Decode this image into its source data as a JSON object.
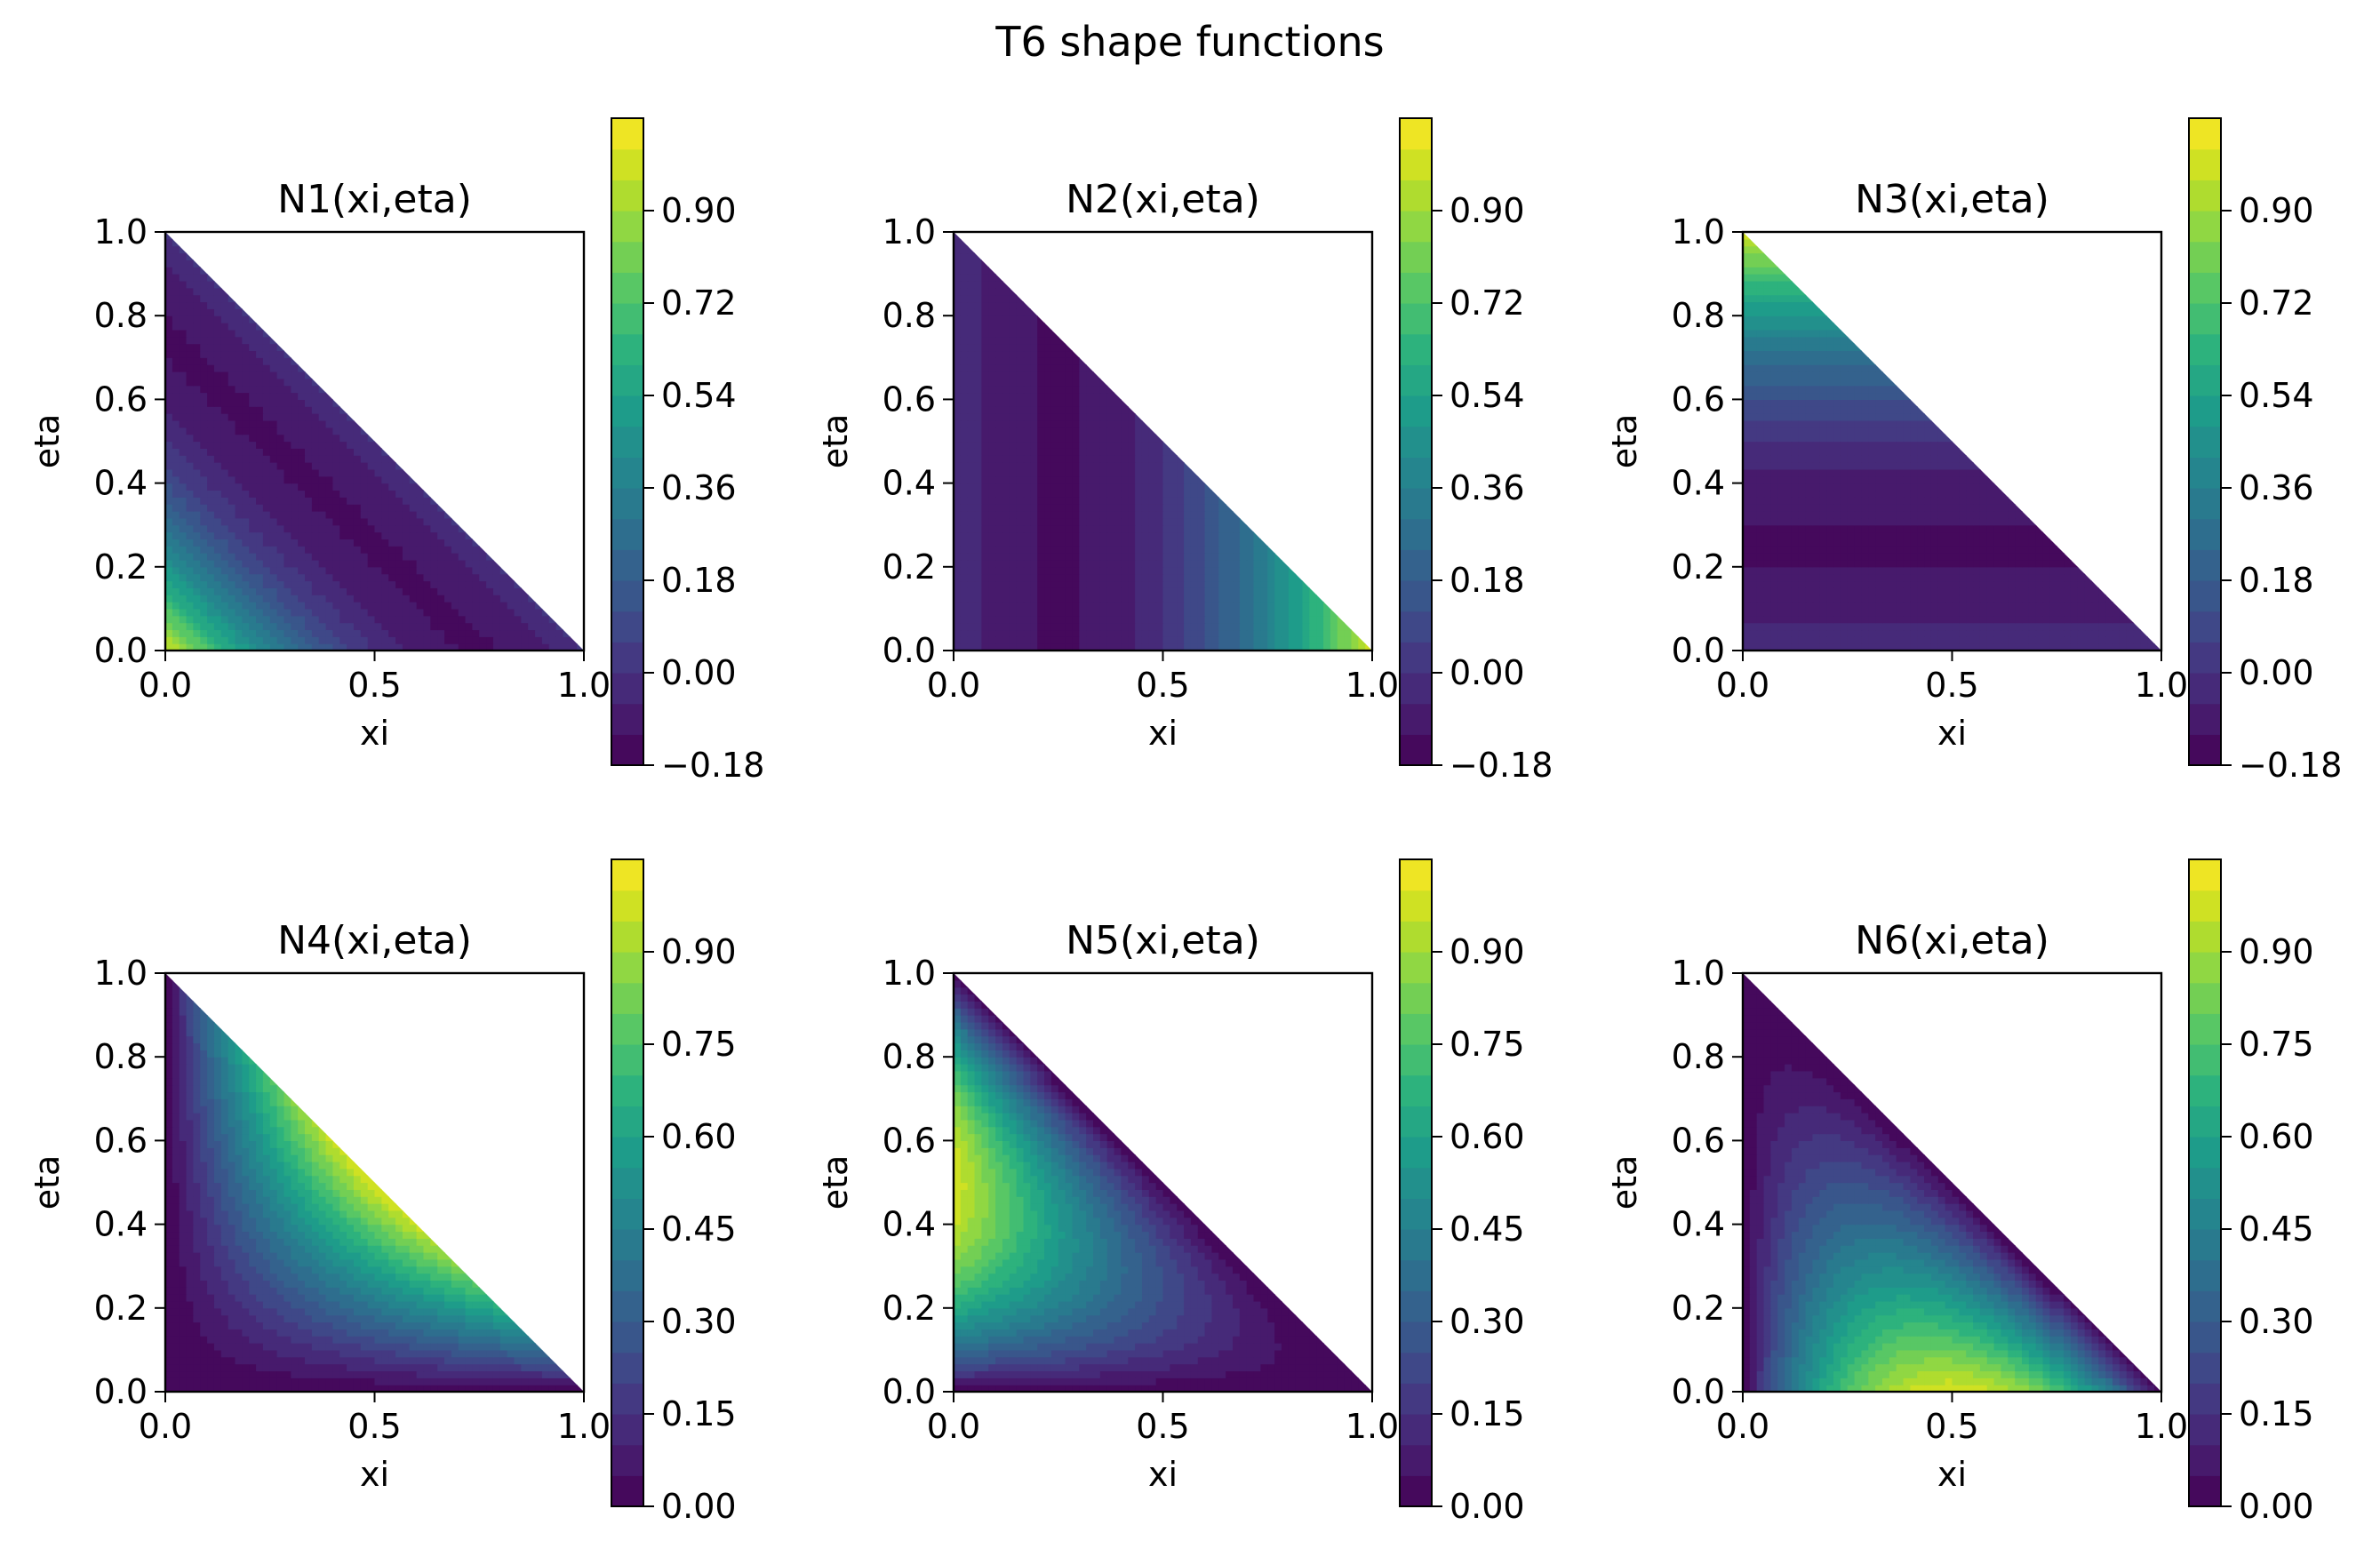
{
  "figure": {
    "title": "T6 shape functions"
  },
  "colors": {
    "viridis": [
      "#440154",
      "#482173",
      "#433e85",
      "#38598c",
      "#2d708e",
      "#25858e",
      "#1e9b8a",
      "#2ab07f",
      "#52c569",
      "#86d549",
      "#c2df23",
      "#fde725"
    ],
    "axes": "#000000",
    "background": "#ffffff"
  },
  "chart_data": [
    {
      "type": "heatmap",
      "title": "N1(xi,eta)",
      "xlabel": "xi",
      "ylabel": "eta",
      "node": 1,
      "xlim": [
        0,
        1
      ],
      "ylim": [
        0,
        1
      ],
      "domain": "triangle",
      "xticks": [
        "0.0",
        "0.5",
        "1.0"
      ],
      "yticks": [
        "0.0",
        "0.2",
        "0.4",
        "0.6",
        "0.8",
        "1.0"
      ],
      "levels": [
        -0.18,
        1.08
      ],
      "level_step": 0.06,
      "colorbar_ticks": [
        "−0.18",
        "0.00",
        "0.18",
        "0.36",
        "0.54",
        "0.72",
        "0.90"
      ],
      "colorbar_tick_values": [
        -0.18,
        0.0,
        0.18,
        0.36,
        0.54,
        0.72,
        0.9
      ]
    },
    {
      "type": "heatmap",
      "title": "N2(xi,eta)",
      "xlabel": "xi",
      "ylabel": "eta",
      "node": 2,
      "xlim": [
        0,
        1
      ],
      "ylim": [
        0,
        1
      ],
      "domain": "triangle",
      "xticks": [
        "0.0",
        "0.5",
        "1.0"
      ],
      "yticks": [
        "0.0",
        "0.2",
        "0.4",
        "0.6",
        "0.8",
        "1.0"
      ],
      "levels": [
        -0.18,
        1.08
      ],
      "level_step": 0.06,
      "colorbar_ticks": [
        "−0.18",
        "0.00",
        "0.18",
        "0.36",
        "0.54",
        "0.72",
        "0.90"
      ],
      "colorbar_tick_values": [
        -0.18,
        0.0,
        0.18,
        0.36,
        0.54,
        0.72,
        0.9
      ]
    },
    {
      "type": "heatmap",
      "title": "N3(xi,eta)",
      "xlabel": "xi",
      "ylabel": "eta",
      "node": 3,
      "xlim": [
        0,
        1
      ],
      "ylim": [
        0,
        1
      ],
      "domain": "triangle",
      "xticks": [
        "0.0",
        "0.5",
        "1.0"
      ],
      "yticks": [
        "0.0",
        "0.2",
        "0.4",
        "0.6",
        "0.8",
        "1.0"
      ],
      "levels": [
        -0.18,
        1.08
      ],
      "level_step": 0.06,
      "colorbar_ticks": [
        "−0.18",
        "0.00",
        "0.18",
        "0.36",
        "0.54",
        "0.72",
        "0.90"
      ],
      "colorbar_tick_values": [
        -0.18,
        0.0,
        0.18,
        0.36,
        0.54,
        0.72,
        0.9
      ]
    },
    {
      "type": "heatmap",
      "title": "N4(xi,eta)",
      "xlabel": "xi",
      "ylabel": "eta",
      "node": 4,
      "xlim": [
        0,
        1
      ],
      "ylim": [
        0,
        1
      ],
      "domain": "triangle",
      "xticks": [
        "0.0",
        "0.5",
        "1.0"
      ],
      "yticks": [
        "0.0",
        "0.2",
        "0.4",
        "0.6",
        "0.8",
        "1.0"
      ],
      "levels": [
        0.0,
        1.05
      ],
      "level_step": 0.05,
      "colorbar_ticks": [
        "0.00",
        "0.15",
        "0.30",
        "0.45",
        "0.60",
        "0.75",
        "0.90"
      ],
      "colorbar_tick_values": [
        0.0,
        0.15,
        0.3,
        0.45,
        0.6,
        0.75,
        0.9
      ]
    },
    {
      "type": "heatmap",
      "title": "N5(xi,eta)",
      "xlabel": "xi",
      "ylabel": "eta",
      "node": 5,
      "xlim": [
        0,
        1
      ],
      "ylim": [
        0,
        1
      ],
      "domain": "triangle",
      "xticks": [
        "0.0",
        "0.5",
        "1.0"
      ],
      "yticks": [
        "0.0",
        "0.2",
        "0.4",
        "0.6",
        "0.8",
        "1.0"
      ],
      "levels": [
        0.0,
        1.05
      ],
      "level_step": 0.05,
      "colorbar_ticks": [
        "0.00",
        "0.15",
        "0.30",
        "0.45",
        "0.60",
        "0.75",
        "0.90"
      ],
      "colorbar_tick_values": [
        0.0,
        0.15,
        0.3,
        0.45,
        0.6,
        0.75,
        0.9
      ]
    },
    {
      "type": "heatmap",
      "title": "N6(xi,eta)",
      "xlabel": "xi",
      "ylabel": "eta",
      "node": 6,
      "xlim": [
        0,
        1
      ],
      "ylim": [
        0,
        1
      ],
      "domain": "triangle",
      "xticks": [
        "0.0",
        "0.5",
        "1.0"
      ],
      "yticks": [
        "0.0",
        "0.2",
        "0.4",
        "0.6",
        "0.8",
        "1.0"
      ],
      "levels": [
        0.0,
        1.05
      ],
      "level_step": 0.05,
      "colorbar_ticks": [
        "0.00",
        "0.15",
        "0.30",
        "0.45",
        "0.60",
        "0.75",
        "0.90"
      ],
      "colorbar_tick_values": [
        0.0,
        0.15,
        0.3,
        0.45,
        0.6,
        0.75,
        0.9
      ]
    }
  ]
}
